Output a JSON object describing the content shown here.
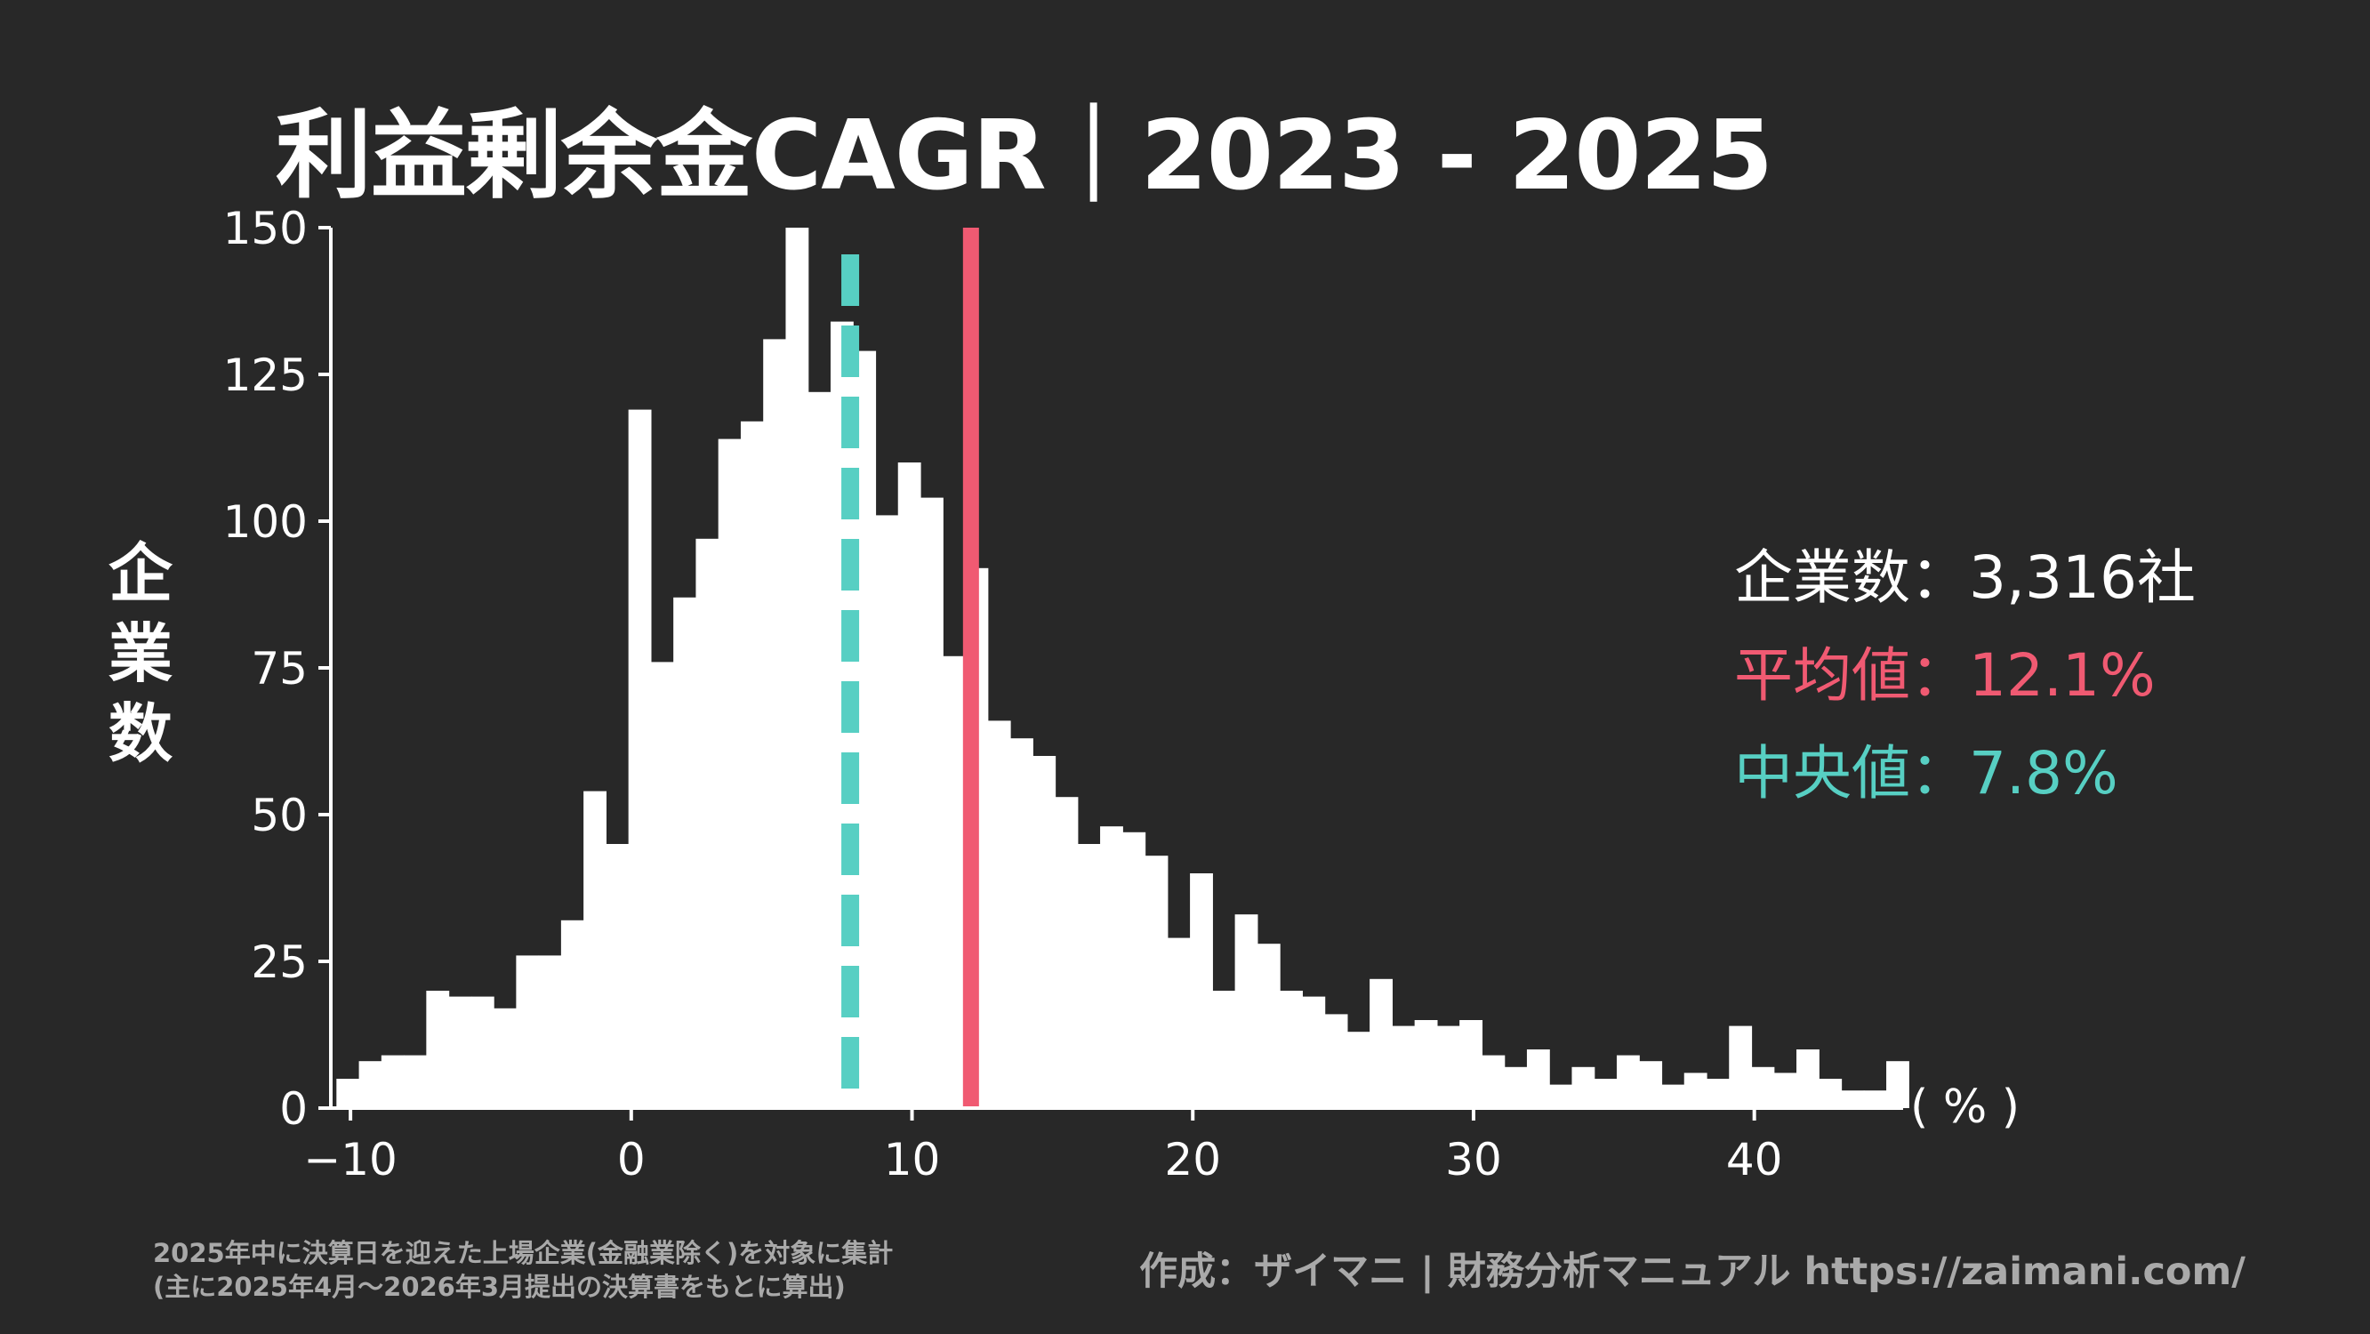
{
  "title": "利益剰余金CAGR｜2023 - 2025",
  "ylabel_chars": [
    "企",
    "業",
    "数"
  ],
  "stats": {
    "count": "企業数：3,316社",
    "mean": "平均値：12.1%",
    "median": "中央値：7.8%"
  },
  "unit": "( % )",
  "footnote": {
    "line1": "2025年中に決算日を迎えた上場企業(金融業除く)を対象に集計",
    "line2": "(主に2025年4月〜2026年3月提出の決算書をもとに算出)"
  },
  "credit": "作成：ザイマニ | 財務分析マニュアル https://zaimani.com/",
  "colors": {
    "background": "#282828",
    "bars": "#ffffff",
    "mean": "#f05a72",
    "median": "#57cfc3",
    "footnote": "#a9a9a9"
  },
  "chart_data": {
    "type": "bar",
    "title": "利益剰余金CAGR｜2023 - 2025",
    "xlabel": "( % )",
    "ylabel": "企業数",
    "bin_start": -10.5,
    "bin_width": 0.8,
    "values": [
      5,
      8,
      9,
      9,
      20,
      19,
      19,
      17,
      26,
      26,
      32,
      54,
      45,
      119,
      76,
      87,
      97,
      114,
      117,
      131,
      150,
      122,
      134,
      129,
      101,
      110,
      104,
      77,
      92,
      66,
      63,
      60,
      53,
      45,
      48,
      47,
      43,
      29,
      40,
      20,
      33,
      28,
      20,
      19,
      16,
      13,
      22,
      14,
      15,
      14,
      15,
      9,
      7,
      10,
      4,
      7,
      5,
      9,
      8,
      4,
      6,
      5,
      14,
      7,
      6,
      10,
      5,
      3,
      3,
      8
    ],
    "xlim": [
      -10.7,
      45.3
    ],
    "ylim": [
      0,
      150
    ],
    "xticks": [
      -10,
      0,
      10,
      20,
      30,
      40
    ],
    "xtick_labels": [
      "−10",
      "0",
      "10",
      "20",
      "30",
      "40"
    ],
    "yticks": [
      0,
      25,
      50,
      75,
      100,
      125,
      150
    ],
    "ytick_labels": [
      "0",
      "25",
      "50",
      "75",
      "100",
      "125",
      "150"
    ],
    "mean": 12.1,
    "median": 7.8,
    "total_count": 3316,
    "grid": false
  }
}
